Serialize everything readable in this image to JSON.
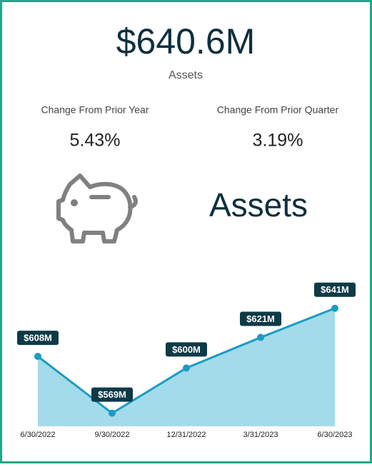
{
  "kpi": {
    "value": "$640.6M",
    "label": "Assets"
  },
  "changes": [
    {
      "label": "Change From Prior Year",
      "value": "5.43%"
    },
    {
      "label": "Change From Prior Quarter",
      "value": "3.19%"
    }
  ],
  "heading": "Assets",
  "chart_data": {
    "type": "area",
    "categories": [
      "6/30/2022",
      "9/30/2022",
      "12/31/2022",
      "3/31/2023",
      "6/30/2023"
    ],
    "values": [
      608,
      569,
      600,
      621,
      641
    ],
    "value_labels": [
      "$608M",
      "$569M",
      "$600M",
      "$621M",
      "$641M"
    ],
    "color": "#a3dbea",
    "line_color": "#1b9cc4",
    "ylim": [
      560,
      650
    ]
  }
}
